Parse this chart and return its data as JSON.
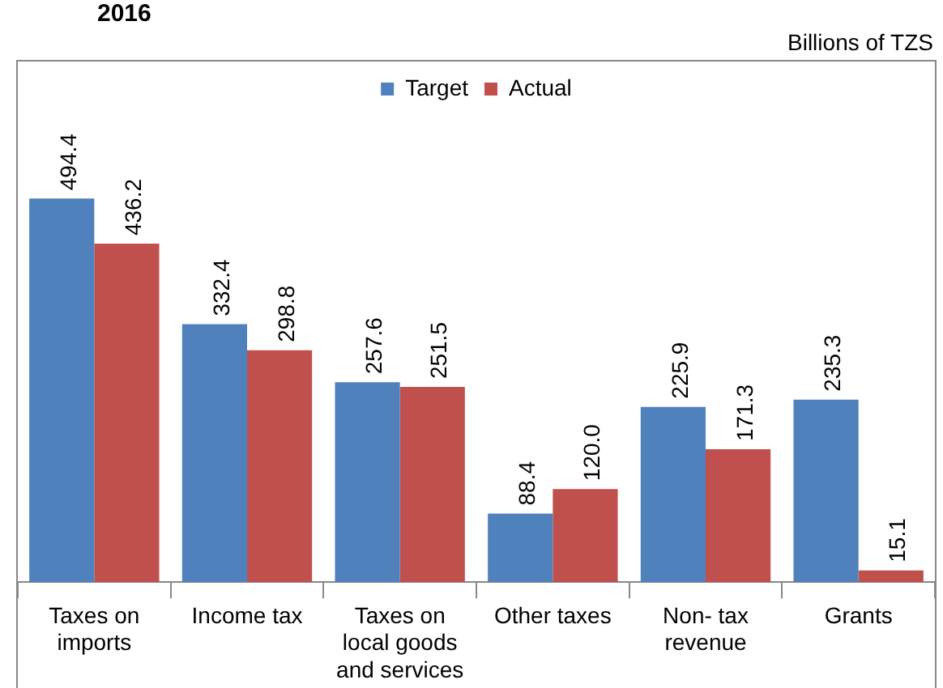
{
  "chart_data": {
    "type": "bar",
    "title": "2016",
    "annotations": [
      "Billions of TZS"
    ],
    "categories": [
      "Taxes on imports",
      "Income tax",
      "Taxes on local goods and services",
      "Other taxes",
      "Non- tax revenue",
      "Grants"
    ],
    "series": [
      {
        "name": "Target",
        "color": "#4f81bd",
        "values": [
          494.4,
          332.4,
          257.6,
          88.4,
          225.9,
          235.3
        ],
        "value_labels": [
          "494.4",
          "332.4",
          "257.6",
          "88.4",
          "225.9",
          "235.3"
        ]
      },
      {
        "name": "Actual",
        "color": "#c0504d",
        "values": [
          436.2,
          298.8,
          251.5,
          120.0,
          171.3,
          15.1
        ],
        "value_labels": [
          "436.2",
          "298.8",
          "251.5",
          "120.0",
          "171.3",
          "15.1"
        ]
      }
    ],
    "legend": "top"
  }
}
